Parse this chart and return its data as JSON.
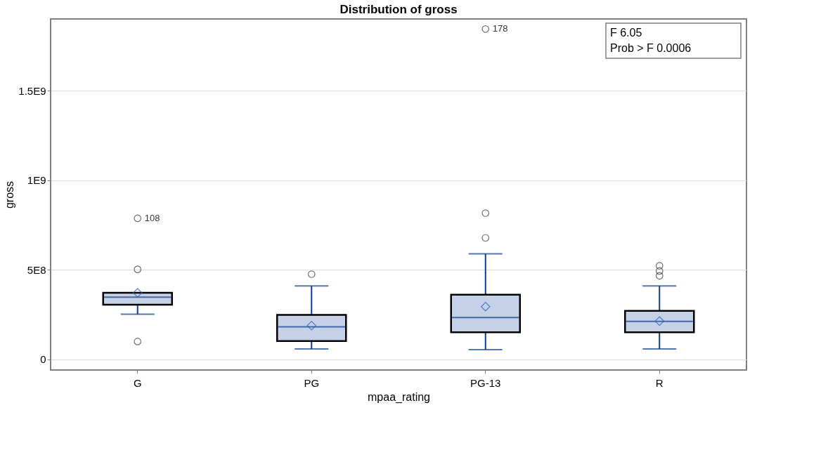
{
  "chart_data": {
    "type": "box",
    "title": "Distribution of gross",
    "xlabel": "mpaa_rating",
    "ylabel": "gross",
    "categories": [
      "G",
      "PG",
      "PG-13",
      "R"
    ],
    "series": [
      {
        "color": "#c5d1e6",
        "boxes": [
          {
            "low": 252000000,
            "q1": 305000000,
            "median": 347000000,
            "q3": 371000000,
            "high": 371000000,
            "mean": 371000000
          },
          {
            "low": 58000000,
            "q1": 102000000,
            "median": 181000000,
            "q3": 248000000,
            "high": 409000000,
            "mean": 188000000
          },
          {
            "low": 54000000,
            "q1": 151000000,
            "median": 233000000,
            "q3": 360000000,
            "high": 589000000,
            "mean": 294000000
          },
          {
            "low": 58000000,
            "q1": 151000000,
            "median": 211000000,
            "q3": 270000000,
            "high": 409000000,
            "mean": 213000000
          }
        ]
      },
      {
        "type": "scatter",
        "color": "#333333",
        "x": [
          "G",
          "G",
          "G",
          "PG",
          "PG-13",
          "PG-13",
          "PG-13",
          "R",
          "R",
          "R"
        ],
        "values": [
          99000000,
          502000000,
          787000000,
          475000000,
          678000000,
          816000000,
          1844000000,
          466000000,
          493000000,
          522000000
        ]
      }
    ],
    "ylim": [
      -60000000,
      1900000000
    ],
    "yticks": [
      0,
      {
        "value": 500000000,
        "label": "5E8"
      },
      {
        "value": 1000000000,
        "label": "1E9"
      },
      {
        "value": 1500000000,
        "label": "1.5E9"
      }
    ],
    "grid": "y",
    "annotations": [
      {
        "text": "108",
        "x": "G",
        "y": 787000000
      },
      {
        "text": "178",
        "x": "PG-13",
        "y": 1844000000
      },
      "F 6.05",
      "Prob > F 0.0006"
    ]
  }
}
